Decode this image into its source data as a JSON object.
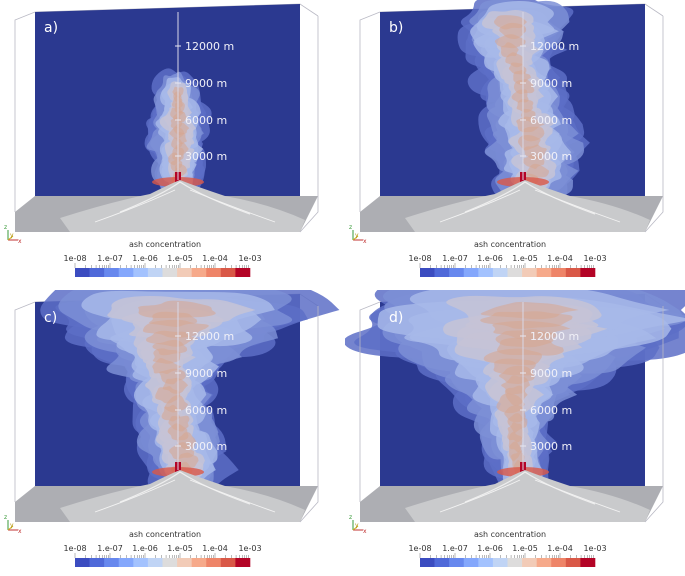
{
  "panels": [
    {
      "label": "a)",
      "altitudes": [
        "12000 m",
        "9000 m",
        "6000 m",
        "3000 m"
      ],
      "plume_stage": 1
    },
    {
      "label": "b)",
      "altitudes": [
        "12000 m",
        "9000 m",
        "6000 m",
        "3000 m"
      ],
      "plume_stage": 2
    },
    {
      "label": "c)",
      "altitudes": [
        "12000 m",
        "9000 m",
        "6000 m",
        "3000 m"
      ],
      "plume_stage": 3
    },
    {
      "label": "d)",
      "altitudes": [
        "12000 m",
        "9000 m",
        "6000 m",
        "3000 m"
      ],
      "plume_stage": 4
    }
  ],
  "colorbar": {
    "title": "ash concentration",
    "ticks": [
      "1e-08",
      "1.e-07",
      "1.e-06",
      "1.e-05",
      "1.e-04",
      "1e-03"
    ],
    "colors": [
      "#3b4cc0",
      "#4f69d9",
      "#6788ee",
      "#84a7fc",
      "#a3c2fe",
      "#c0d4f5",
      "#dddcdc",
      "#f2cbb7",
      "#f6a98a",
      "#ee8468",
      "#d95847",
      "#b40426"
    ]
  },
  "axes": {
    "z": "z",
    "y": "y",
    "x": "x"
  },
  "colors": {
    "background": "#2b3990",
    "plume_outer": "#7d8fd6",
    "plume_mid": "#a7b9e9",
    "plume_inner": "#d7a58f",
    "plume_core": "#b40426",
    "terrain": "#c9cacc"
  }
}
